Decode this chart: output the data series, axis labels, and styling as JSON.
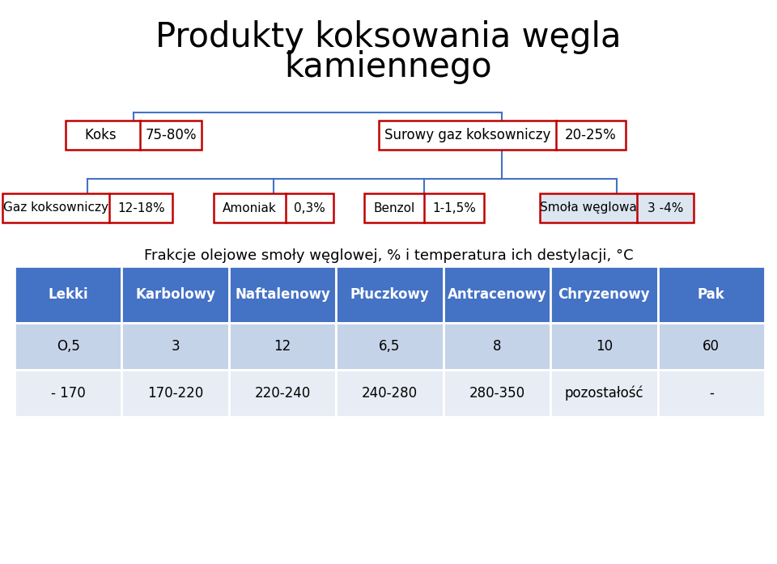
{
  "title_line1": "Produkty koksowania węgla",
  "title_line2": "kamiennego",
  "title_fontsize": 30,
  "box_border_color": "#c00000",
  "box_smola_bg": "#dce6f1",
  "subtitle": "Frakcje olejowe smoły węglowej, % i temperatura ich destylacji, °C",
  "subtitle_fontsize": 13,
  "table_header_color": "#4472c4",
  "table_row1_color": "#c5d3e8",
  "table_row2_color": "#e8ecf4",
  "table_headers": [
    "Lekki",
    "Karbolowy",
    "Naftalenowy",
    "Płuczkowy",
    "Antracenowy",
    "Chryzenowy",
    "Pak"
  ],
  "table_row1": [
    "O,5",
    "3",
    "12",
    "6,5",
    "8",
    "10",
    "60"
  ],
  "table_row2": [
    "- 170",
    "170-220",
    "220-240",
    "240-280",
    "280-350",
    "pozostałość",
    "-"
  ],
  "text_color_dark": "#000000",
  "text_color_white": "#ffffff",
  "connector_color": "#4472c4",
  "bg_color": "#ffffff"
}
